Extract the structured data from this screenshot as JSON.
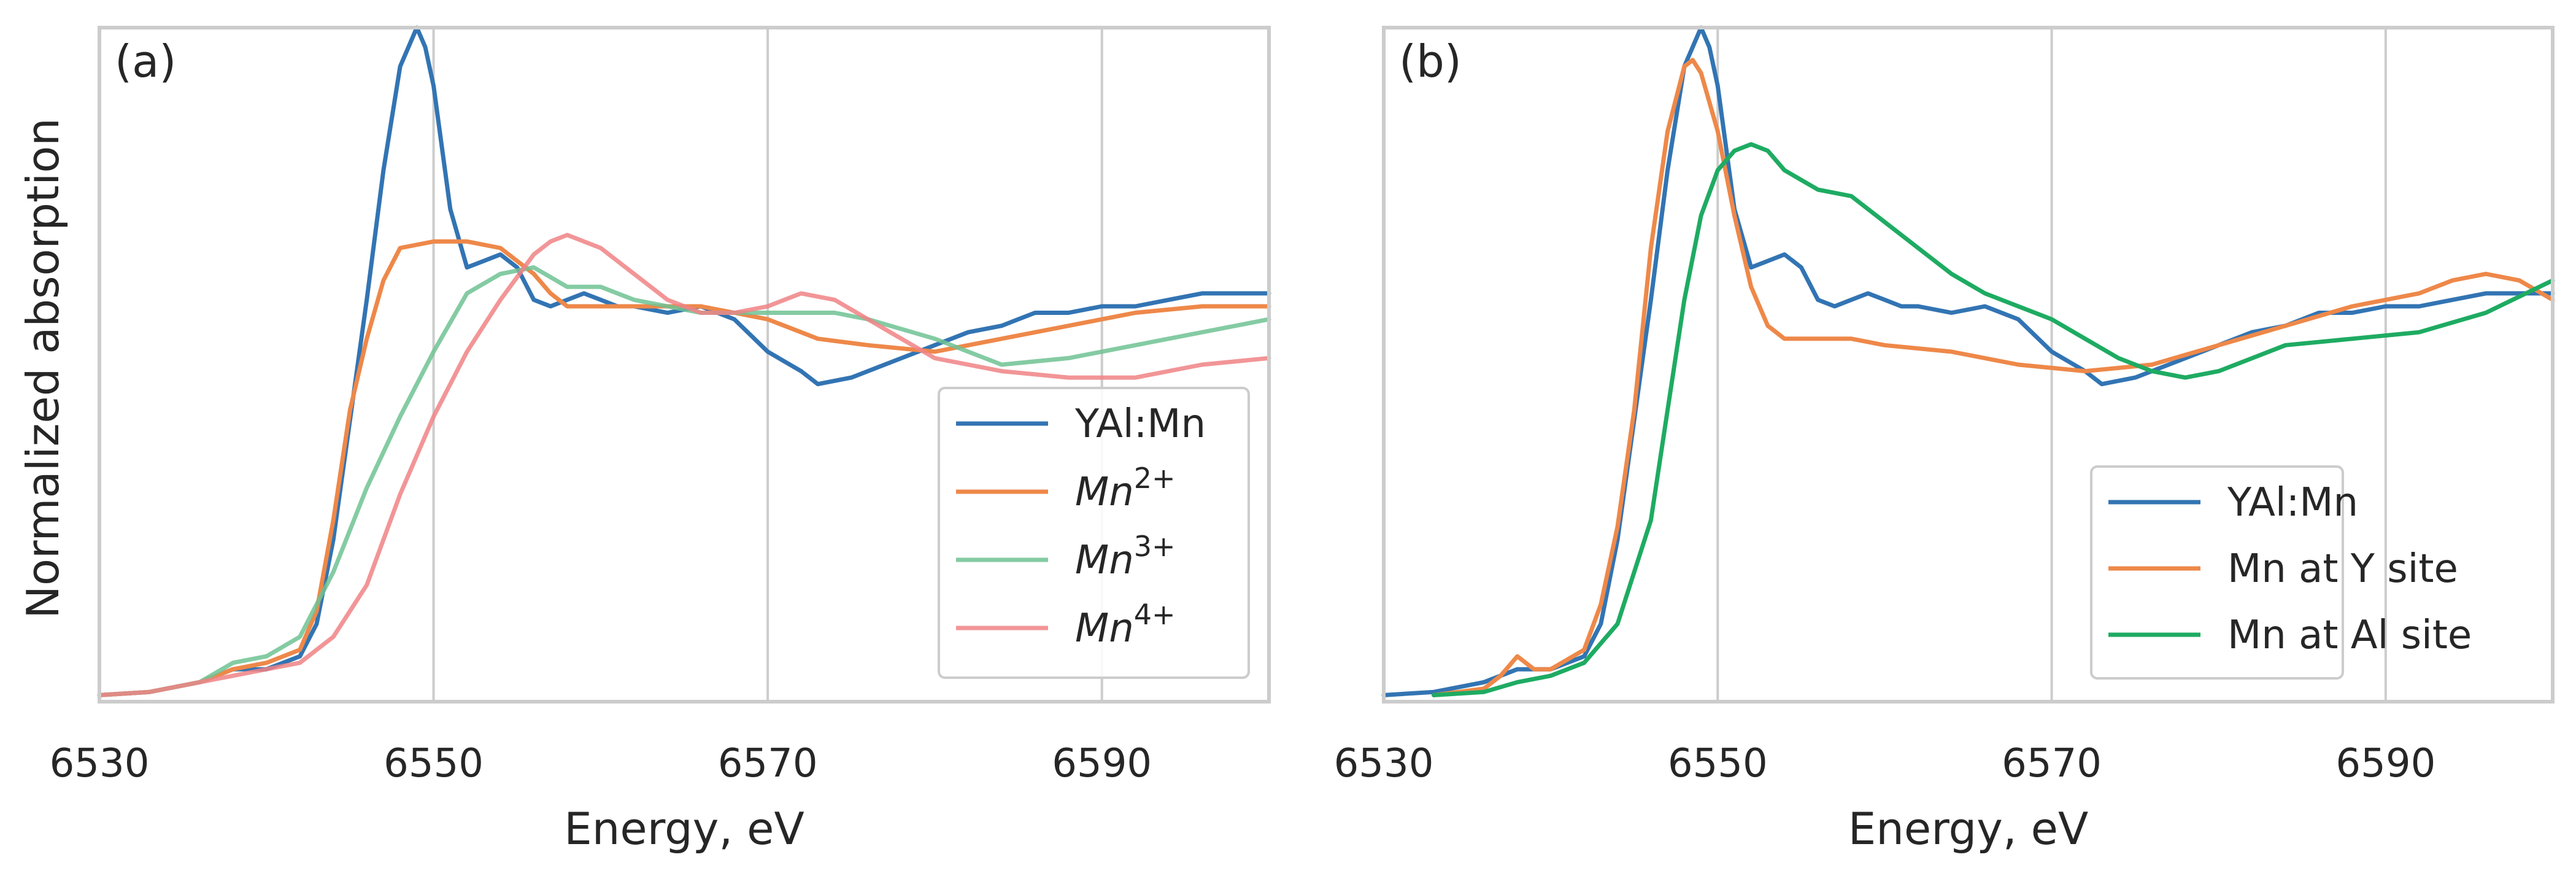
{
  "figure": {
    "ylabel": "Normalized absorption"
  },
  "chart_data": [
    {
      "type": "line",
      "panel_label": "(a)",
      "xlabel": "Energy, eV",
      "ylabel": "Normalized absorption",
      "xlim": [
        6530,
        6600
      ],
      "ylim": [
        0,
        1.04
      ],
      "xticks": [
        6530,
        6550,
        6570,
        6590
      ],
      "grid": "vertical",
      "legend_position": "lower-right",
      "series": [
        {
          "name": "YAl:Mn",
          "color": "#3274b3",
          "opacity": 1,
          "x": [
            6530,
            6533,
            6536,
            6538,
            6540,
            6542,
            6543,
            6544,
            6546,
            6547,
            6548,
            6549,
            6549.5,
            6550,
            6551,
            6552,
            6553,
            6554,
            6555,
            6556,
            6557,
            6558,
            6559,
            6560,
            6561,
            6562,
            6564,
            6566,
            6568,
            6570,
            6572,
            6573,
            6575,
            6577,
            6579,
            6580,
            6582,
            6584,
            6586,
            6588,
            6590,
            6592,
            6594,
            6596,
            6598,
            6600
          ],
          "y": [
            0.01,
            0.015,
            0.03,
            0.05,
            0.05,
            0.07,
            0.12,
            0.25,
            0.62,
            0.82,
            0.98,
            1.04,
            1.01,
            0.95,
            0.76,
            0.67,
            0.68,
            0.69,
            0.67,
            0.62,
            0.61,
            0.62,
            0.63,
            0.62,
            0.61,
            0.61,
            0.6,
            0.61,
            0.59,
            0.54,
            0.51,
            0.49,
            0.5,
            0.52,
            0.54,
            0.55,
            0.57,
            0.58,
            0.6,
            0.6,
            0.61,
            0.61,
            0.62,
            0.63,
            0.63,
            0.63
          ]
        },
        {
          "name": "Mn",
          "sup": "2+",
          "color": "#ee8849",
          "opacity": 1,
          "x": [
            6530,
            6533,
            6536,
            6538,
            6540,
            6542,
            6543,
            6544,
            6545,
            6546,
            6547,
            6548,
            6550,
            6552,
            6554,
            6555,
            6556,
            6557,
            6558,
            6560,
            6562,
            6564,
            6566,
            6568,
            6570,
            6573,
            6576,
            6580,
            6584,
            6588,
            6592,
            6596,
            6600
          ],
          "y": [
            0.01,
            0.015,
            0.03,
            0.05,
            0.06,
            0.08,
            0.14,
            0.28,
            0.45,
            0.56,
            0.65,
            0.7,
            0.71,
            0.71,
            0.7,
            0.68,
            0.66,
            0.63,
            0.61,
            0.61,
            0.61,
            0.61,
            0.61,
            0.6,
            0.59,
            0.56,
            0.55,
            0.54,
            0.56,
            0.58,
            0.6,
            0.61,
            0.61
          ]
        },
        {
          "name": "Mn",
          "sup": "3+",
          "color": "#6fc293",
          "opacity": 0.85,
          "x": [
            6530,
            6533,
            6536,
            6538,
            6540,
            6542,
            6544,
            6546,
            6548,
            6550,
            6552,
            6554,
            6556,
            6558,
            6560,
            6562,
            6564,
            6566,
            6568,
            6570,
            6572,
            6574,
            6576,
            6580,
            6584,
            6588,
            6592,
            6596,
            6600
          ],
          "y": [
            0.01,
            0.015,
            0.03,
            0.06,
            0.07,
            0.1,
            0.2,
            0.33,
            0.44,
            0.54,
            0.63,
            0.66,
            0.67,
            0.64,
            0.64,
            0.62,
            0.61,
            0.6,
            0.6,
            0.6,
            0.6,
            0.6,
            0.59,
            0.56,
            0.52,
            0.53,
            0.55,
            0.57,
            0.59
          ]
        },
        {
          "name": "Mn",
          "sup": "4+",
          "color": "#f08385",
          "opacity": 0.85,
          "x": [
            6530,
            6533,
            6536,
            6538,
            6540,
            6542,
            6544,
            6546,
            6548,
            6550,
            6552,
            6554,
            6556,
            6557,
            6558,
            6559,
            6560,
            6562,
            6564,
            6566,
            6568,
            6570,
            6572,
            6574,
            6576,
            6578,
            6580,
            6584,
            6588,
            6592,
            6596,
            6600
          ],
          "y": [
            0.01,
            0.015,
            0.03,
            0.04,
            0.05,
            0.06,
            0.1,
            0.18,
            0.32,
            0.44,
            0.54,
            0.62,
            0.69,
            0.71,
            0.72,
            0.71,
            0.7,
            0.66,
            0.62,
            0.6,
            0.6,
            0.61,
            0.63,
            0.62,
            0.59,
            0.56,
            0.53,
            0.51,
            0.5,
            0.5,
            0.52,
            0.53
          ]
        }
      ]
    },
    {
      "type": "line",
      "panel_label": "(b)",
      "xlabel": "Energy, eV",
      "xlim": [
        6530,
        6600
      ],
      "ylim": [
        0,
        1.04
      ],
      "xticks": [
        6530,
        6550,
        6570,
        6590
      ],
      "grid": "vertical",
      "legend_position": "lower-right",
      "series": [
        {
          "name": "YAl:Mn",
          "color": "#3274b3",
          "opacity": 1,
          "x": [
            6530,
            6533,
            6536,
            6538,
            6540,
            6542,
            6543,
            6544,
            6546,
            6547,
            6548,
            6549,
            6549.5,
            6550,
            6551,
            6552,
            6553,
            6554,
            6555,
            6556,
            6557,
            6558,
            6559,
            6560,
            6561,
            6562,
            6564,
            6566,
            6568,
            6570,
            6572,
            6573,
            6575,
            6577,
            6579,
            6580,
            6582,
            6584,
            6586,
            6588,
            6590,
            6592,
            6594,
            6596,
            6598,
            6600
          ],
          "y": [
            0.01,
            0.015,
            0.03,
            0.05,
            0.05,
            0.07,
            0.12,
            0.25,
            0.62,
            0.82,
            0.98,
            1.04,
            1.01,
            0.95,
            0.76,
            0.67,
            0.68,
            0.69,
            0.67,
            0.62,
            0.61,
            0.62,
            0.63,
            0.62,
            0.61,
            0.61,
            0.6,
            0.61,
            0.59,
            0.54,
            0.51,
            0.49,
            0.5,
            0.52,
            0.54,
            0.55,
            0.57,
            0.58,
            0.6,
            0.6,
            0.61,
            0.61,
            0.62,
            0.63,
            0.63,
            0.63
          ]
        },
        {
          "name": "Mn at Y site",
          "color": "#ee8849",
          "opacity": 1,
          "x": [
            6533,
            6536,
            6537,
            6538,
            6539,
            6540,
            6542,
            6543,
            6544,
            6545,
            6546,
            6547,
            6548,
            6548.5,
            6549,
            6550,
            6551,
            6552,
            6553,
            6554,
            6556,
            6558,
            6560,
            6564,
            6568,
            6572,
            6576,
            6580,
            6584,
            6588,
            6592,
            6594,
            6596,
            6598,
            6600
          ],
          "y": [
            0.01,
            0.02,
            0.04,
            0.07,
            0.05,
            0.05,
            0.08,
            0.15,
            0.27,
            0.45,
            0.7,
            0.88,
            0.98,
            0.99,
            0.97,
            0.88,
            0.75,
            0.64,
            0.58,
            0.56,
            0.56,
            0.56,
            0.55,
            0.54,
            0.52,
            0.51,
            0.52,
            0.55,
            0.58,
            0.61,
            0.63,
            0.65,
            0.66,
            0.65,
            0.62
          ]
        },
        {
          "name": "Mn at Al site",
          "color": "#1eab62",
          "opacity": 1,
          "x": [
            6533,
            6536,
            6538,
            6540,
            6542,
            6544,
            6546,
            6547,
            6548,
            6549,
            6550,
            6551,
            6552,
            6553,
            6554,
            6556,
            6558,
            6560,
            6562,
            6564,
            6566,
            6568,
            6570,
            6572,
            6574,
            6576,
            6578,
            6580,
            6584,
            6588,
            6592,
            6596,
            6600
          ],
          "y": [
            0.01,
            0.015,
            0.03,
            0.04,
            0.06,
            0.12,
            0.28,
            0.45,
            0.62,
            0.75,
            0.82,
            0.85,
            0.86,
            0.85,
            0.82,
            0.79,
            0.78,
            0.74,
            0.7,
            0.66,
            0.63,
            0.61,
            0.59,
            0.56,
            0.53,
            0.51,
            0.5,
            0.51,
            0.55,
            0.56,
            0.57,
            0.6,
            0.65
          ]
        }
      ]
    }
  ]
}
